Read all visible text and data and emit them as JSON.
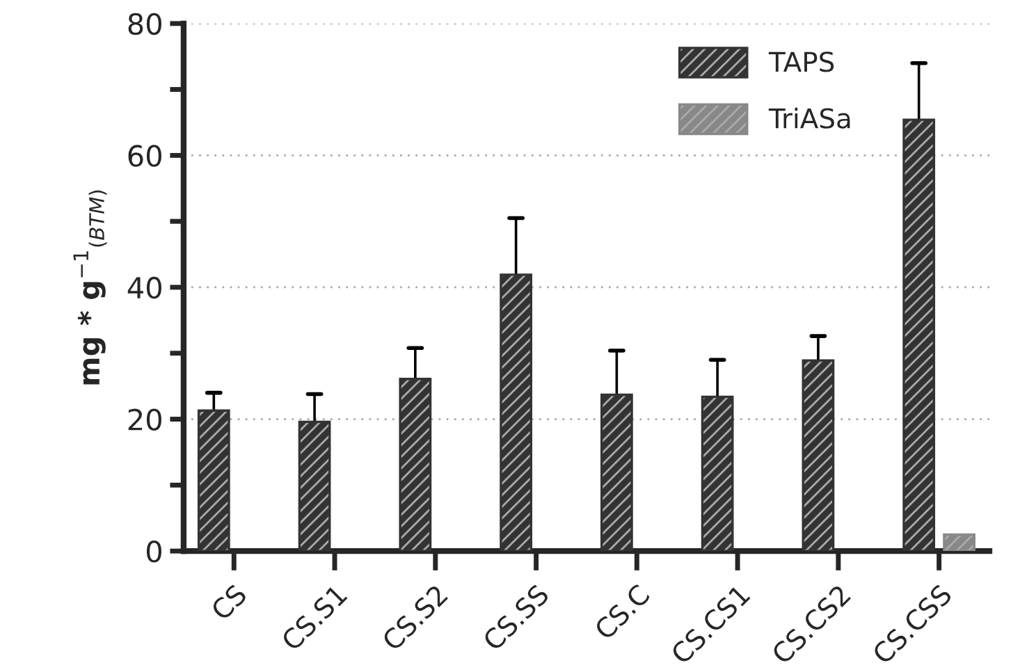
{
  "chart_data": {
    "type": "bar",
    "categories": [
      "CS",
      "CS.S1",
      "CS.S2",
      "CS.SS",
      "CS.C",
      "CS.CS1",
      "CS.CS2",
      "CS.CSS"
    ],
    "ylabel": "mg * g$^{−1}$$_{(BTM)}$",
    "series": [
      {
        "name": "TAPS",
        "color": "#333333",
        "values": [
          21.3,
          19.6,
          26.1,
          41.9,
          23.7,
          23.4,
          28.9,
          65.4
        ],
        "errors": [
          [
            21.3,
            24.0
          ],
          [
            19.6,
            23.8
          ],
          [
            26.1,
            30.8
          ],
          [
            41.9,
            50.5
          ],
          [
            23.7,
            30.4
          ],
          [
            23.4,
            29.0
          ],
          [
            28.9,
            32.6
          ],
          [
            65.4,
            74.0
          ]
        ]
      },
      {
        "name": "TriASa",
        "color": "#888888",
        "values": [
          null,
          null,
          null,
          null,
          null,
          null,
          null,
          2.5
        ]
      }
    ],
    "ylim": [
      0,
      80
    ],
    "yticks": [
      0,
      {
        "value": 10,
        "label": null
      },
      20,
      {
        "value": 30,
        "label": null
      },
      40,
      {
        "value": 50,
        "label": null
      },
      60,
      {
        "value": 70,
        "label": null
      },
      80
    ],
    "grid": "y",
    "legend": "top right"
  }
}
